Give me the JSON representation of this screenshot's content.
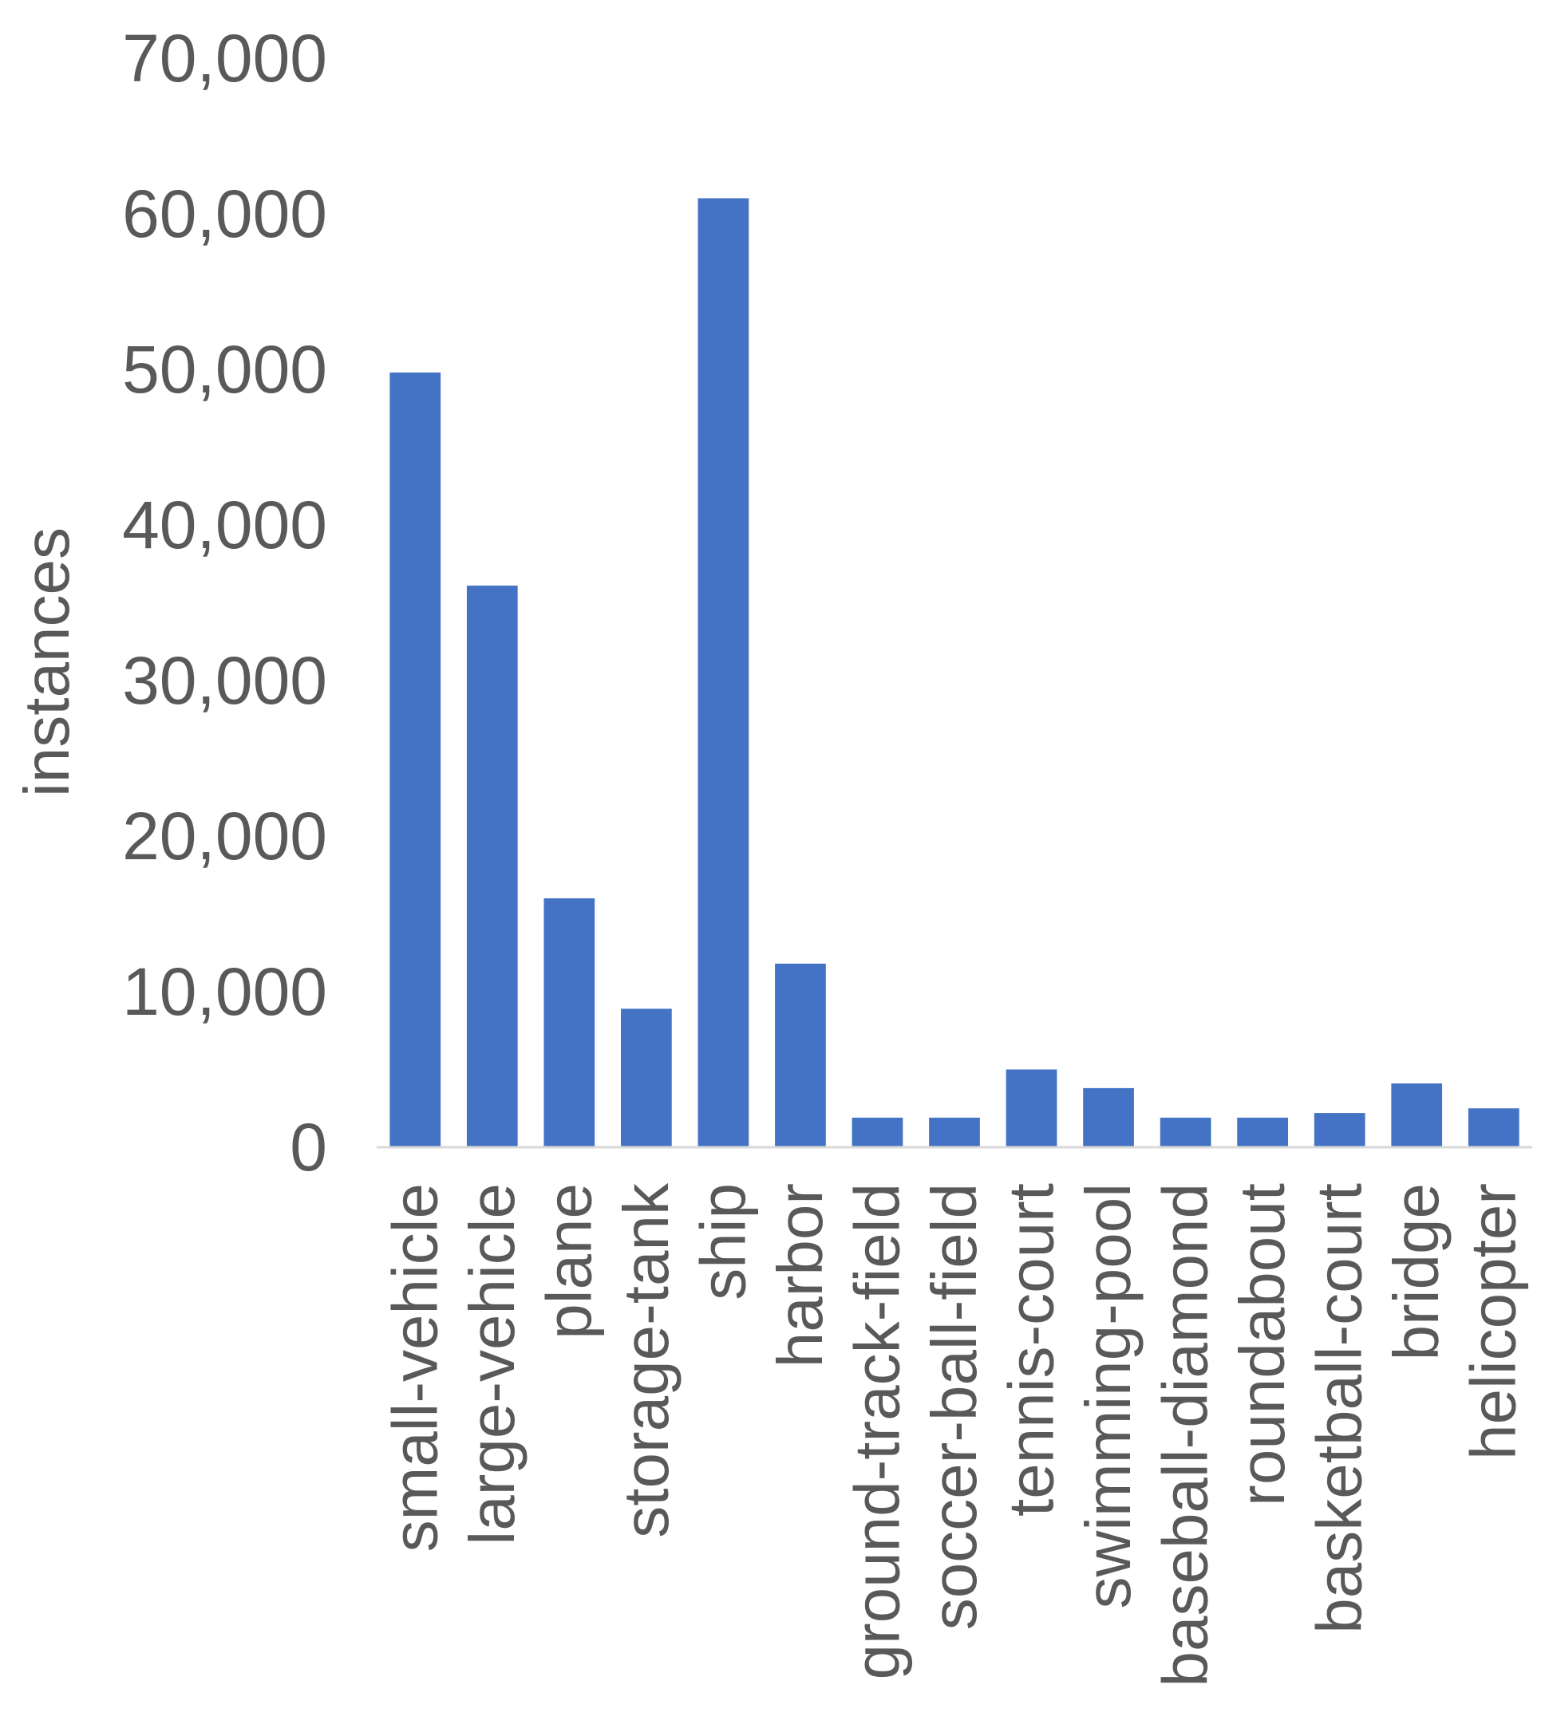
{
  "chart_data": {
    "type": "bar",
    "title": "",
    "xlabel": "",
    "ylabel": "instances",
    "ylim": [
      0,
      70000
    ],
    "yticks": [
      "0",
      "10,000",
      "20,000",
      "30,000",
      "40,000",
      "50,000",
      "60,000",
      "70,000"
    ],
    "categories": [
      "small-vehicle",
      "large-vehicle",
      "plane",
      "storage-tank",
      "ship",
      "harbor",
      "ground-track-field",
      "soccer-ball-field",
      "tennis-court",
      "swimming-pool",
      "baseball-diamond",
      "roundabout",
      "basketball-court",
      "bridge",
      "helicopter"
    ],
    "values": [
      49800,
      36100,
      16000,
      8900,
      61000,
      11800,
      1900,
      1900,
      5000,
      3800,
      1900,
      1900,
      2200,
      4100,
      2500
    ],
    "bar_color": "#4472C4",
    "grid": false,
    "legend": "none"
  }
}
